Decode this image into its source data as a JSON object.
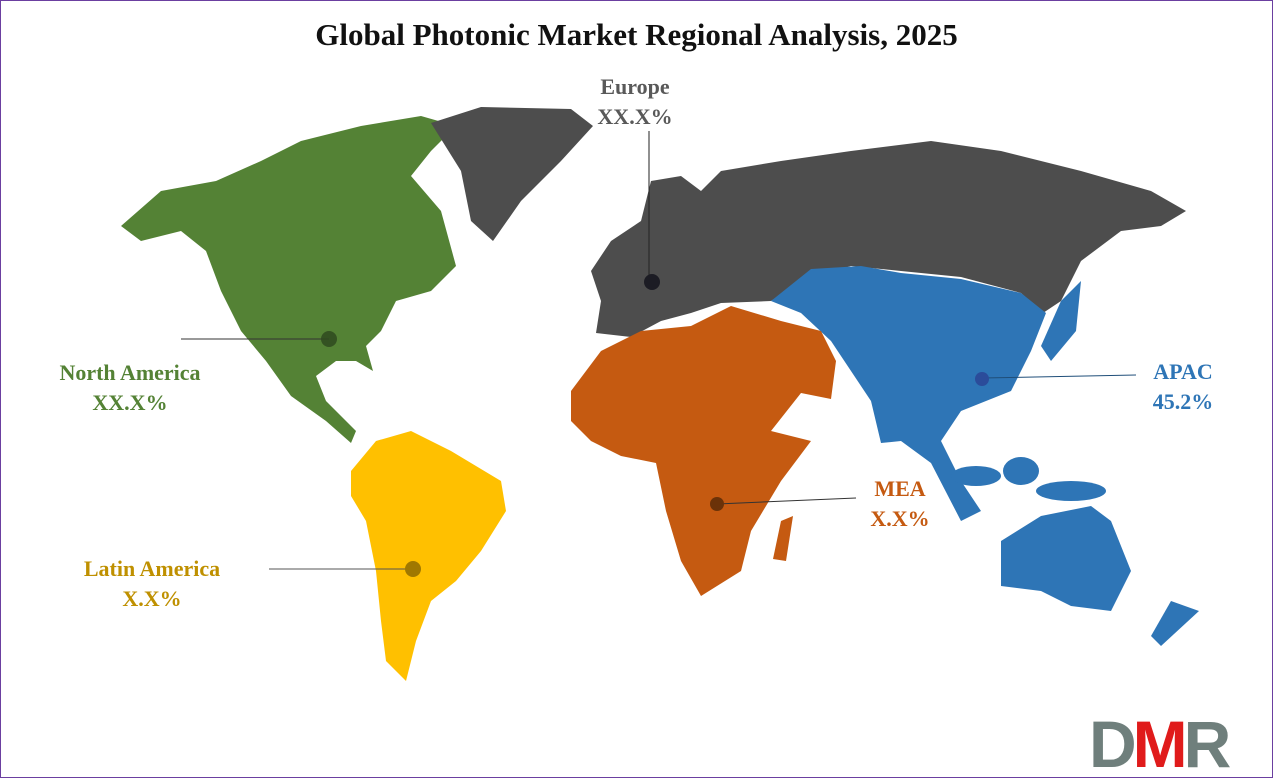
{
  "title": "Global Photonic Market Regional Analysis, 2025",
  "regions": [
    {
      "name": "North America",
      "value": "XX.X%",
      "color": "#548235"
    },
    {
      "name": "Europe",
      "value": "XX.X%",
      "color": "#4d4d4d"
    },
    {
      "name": "APAC",
      "value": "45.2%",
      "color": "#2e75b6"
    },
    {
      "name": "MEA",
      "value": "X.X%",
      "color": "#c55a11"
    },
    {
      "name": "Latin America",
      "value": "X.X%",
      "color": "#ffc000"
    }
  ],
  "logo": {
    "text": "DMR",
    "colors": [
      "#6f7f7c",
      "#e01b1b",
      "#6f7f7c"
    ]
  }
}
